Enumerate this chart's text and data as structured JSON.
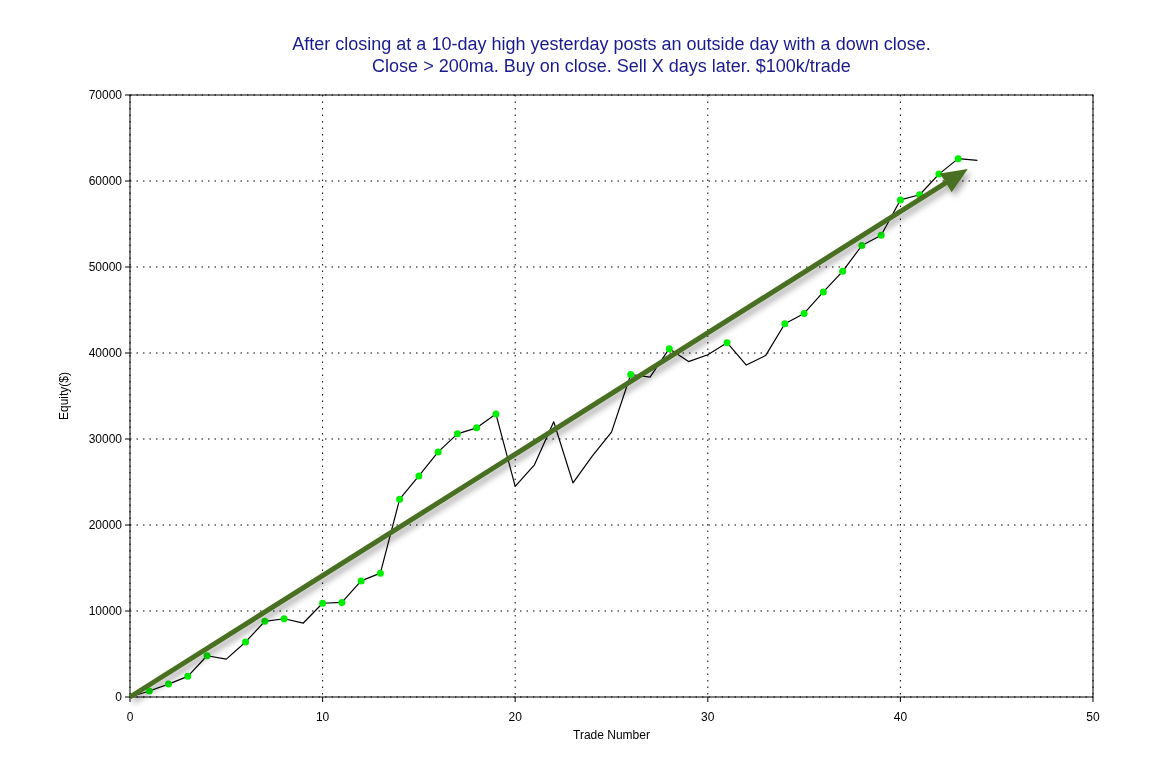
{
  "chart_data": {
    "type": "line",
    "title": "After closing at a 10-day high yesterday posts an outside day with a down close.\nClose > 200ma. Buy on close. Sell X days later. $100k/trade",
    "xlabel": "Trade Number",
    "ylabel": "Equity($)",
    "xlim": [
      0,
      50
    ],
    "xticks": [
      0,
      10,
      20,
      30,
      40,
      50
    ],
    "ylim": [
      0,
      70000
    ],
    "yticks": [
      0,
      10000,
      20000,
      30000,
      40000,
      50000,
      60000,
      70000
    ],
    "grid": true,
    "series": [
      {
        "type": "line",
        "color": "#000000",
        "marker": "none",
        "x": [
          0,
          1,
          2,
          3,
          4,
          5,
          6,
          7,
          8,
          9,
          10,
          11,
          12,
          13,
          14,
          15,
          16,
          17,
          18,
          19,
          20,
          21,
          22,
          23,
          24,
          25,
          26,
          27,
          28,
          29,
          30,
          31,
          32,
          33,
          34,
          35,
          36,
          37,
          38,
          39,
          40,
          41,
          42,
          43,
          44
        ],
        "values": [
          0,
          700,
          1500,
          2400,
          4800,
          4400,
          6400,
          8800,
          9100,
          8600,
          10900,
          11000,
          13500,
          14400,
          23000,
          25700,
          28500,
          30600,
          31300,
          32900,
          24500,
          27000,
          32000,
          24900,
          28000,
          30800,
          37500,
          37200,
          40500,
          39000,
          39800,
          41200,
          38600,
          39700,
          43400,
          44600,
          47100,
          49500,
          52500,
          53700,
          57800,
          58400,
          60800,
          62600,
          62400
        ]
      },
      {
        "type": "scatter",
        "color": "#00ee00",
        "marker": "circle",
        "x": [
          1,
          2,
          3,
          4,
          6,
          7,
          8,
          10,
          11,
          12,
          13,
          14,
          15,
          16,
          17,
          18,
          19,
          26,
          28,
          31,
          34,
          35,
          36,
          37,
          38,
          39,
          40,
          41,
          42,
          43
        ],
        "values": [
          700,
          1500,
          2400,
          4800,
          6400,
          8800,
          9100,
          10900,
          11000,
          13500,
          14400,
          23000,
          25700,
          28500,
          30600,
          31300,
          32900,
          37500,
          40500,
          41200,
          43400,
          44600,
          47100,
          49500,
          52500,
          53700,
          57800,
          58400,
          60800,
          62600
        ]
      }
    ]
  }
}
